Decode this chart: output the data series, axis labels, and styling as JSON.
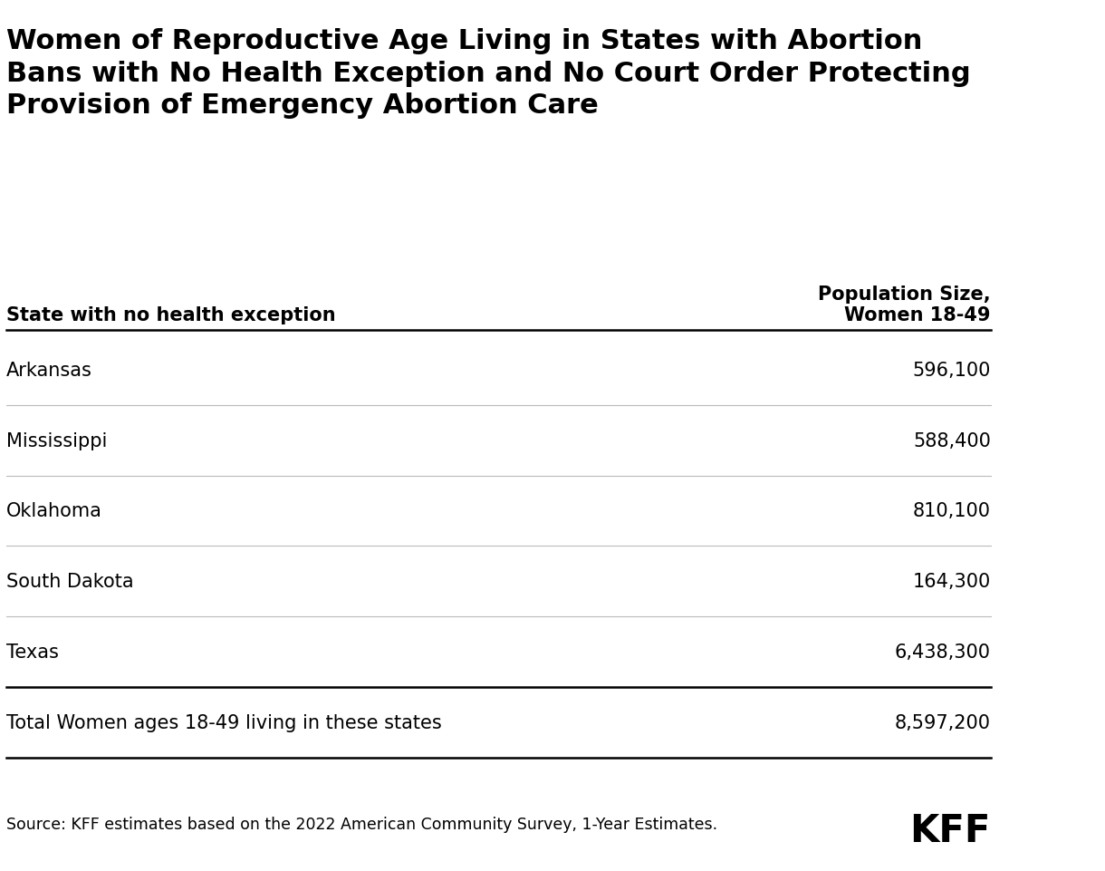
{
  "title": "Women of Reproductive Age Living in States with Abortion\nBans with No Health Exception and No Court Order Protecting\nProvision of Emergency Abortion Care",
  "col1_header": "State with no health exception",
  "col2_header": "Population Size,\nWomen 18-49",
  "rows": [
    [
      "Arkansas",
      "596,100"
    ],
    [
      "Mississippi",
      "588,400"
    ],
    [
      "Oklahoma",
      "810,100"
    ],
    [
      "South Dakota",
      "164,300"
    ],
    [
      "Texas",
      "6,438,300"
    ]
  ],
  "total_label": "Total Women ages 18-49 living in these states",
  "total_value": "8,597,200",
  "source_text": "Source: KFF estimates based on the 2022 American Community Survey, 1-Year Estimates.",
  "kff_text": "KFF",
  "background_color": "#ffffff",
  "text_color": "#000000",
  "thin_line_color": "#bbbbbb",
  "thick_line_color": "#000000",
  "title_fontsize": 22,
  "header_fontsize": 15,
  "row_fontsize": 15,
  "source_fontsize": 12.5,
  "kff_fontsize": 30
}
